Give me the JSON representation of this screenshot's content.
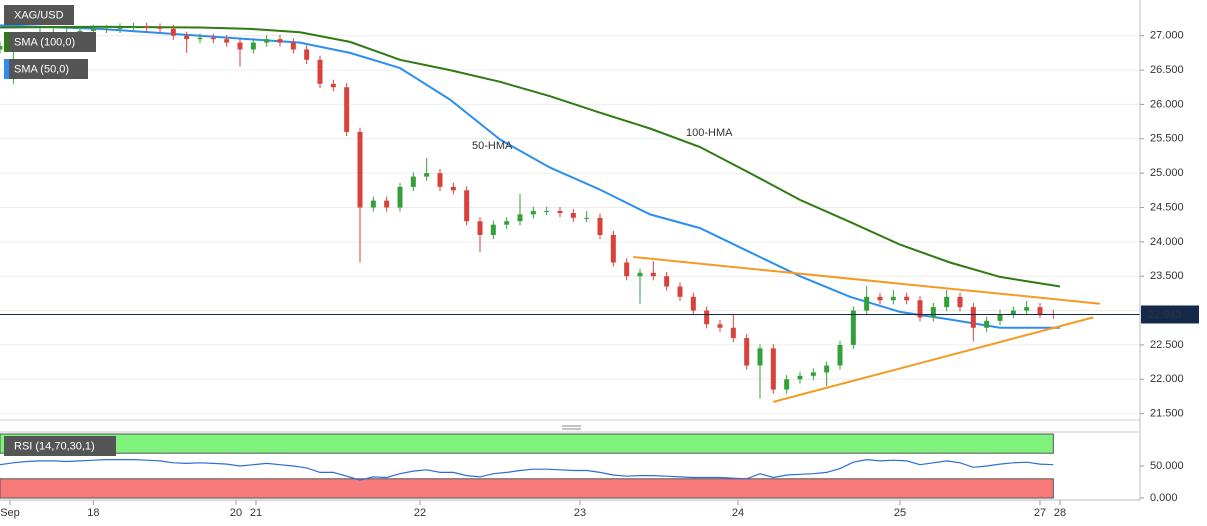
{
  "chart_data": [
    {
      "type": "candlestick",
      "title": "XAG/USD",
      "up_color": "#34a03a",
      "down_color": "#d9423b",
      "grid": true,
      "xlim": [
        0,
        171
      ],
      "ylim": [
        21.48,
        27.52
      ],
      "yticks": [
        {
          "value": 21.5,
          "label": "21.500"
        },
        {
          "value": 22,
          "label": "22.000"
        },
        {
          "value": 22.5,
          "label": "22.500"
        },
        {
          "value": 23,
          "label": "23.000"
        },
        {
          "value": 23.5,
          "label": "23.500"
        },
        {
          "value": 24,
          "label": "24.000"
        },
        {
          "value": 24.5,
          "label": "24.500"
        },
        {
          "value": 25,
          "label": "25.000"
        },
        {
          "value": 25.5,
          "label": "25.500"
        },
        {
          "value": 26,
          "label": "26.000"
        },
        {
          "value": 26.5,
          "label": "26.500"
        },
        {
          "value": 27,
          "label": "27.000"
        }
      ],
      "last_price": 22.943,
      "last_price_color": "#15294a",
      "x": [
        0,
        2,
        4,
        6,
        8,
        10,
        12,
        14,
        16,
        18,
        20,
        22,
        24,
        26,
        28,
        30,
        32,
        34,
        36,
        38,
        40,
        42,
        44,
        46,
        48,
        50,
        52,
        54,
        56,
        58,
        60,
        62,
        64,
        66,
        68,
        70,
        72,
        74,
        76,
        78,
        80,
        82,
        84,
        86,
        88,
        90,
        92,
        94,
        96,
        98,
        100,
        102,
        104,
        106,
        108,
        110,
        112,
        114,
        116,
        118,
        120,
        122,
        124,
        126,
        128,
        130,
        132,
        134,
        136,
        138,
        140,
        142,
        144,
        146,
        148,
        150,
        152,
        154,
        156,
        158
      ],
      "open": [
        26.8,
        26.85,
        26.95,
        27.0,
        27.05,
        27.05,
        27.05,
        27.07,
        27.1,
        27.1,
        27.12,
        27.13,
        27.12,
        27.1,
        27.0,
        26.95,
        26.97,
        26.95,
        26.9,
        26.8,
        26.9,
        26.95,
        26.9,
        26.8,
        26.65,
        26.3,
        26.25,
        25.6,
        24.5,
        24.6,
        24.5,
        24.8,
        24.95,
        25.0,
        24.8,
        24.75,
        24.3,
        24.1,
        24.25,
        24.3,
        24.4,
        24.45,
        24.45,
        24.42,
        24.35,
        24.35,
        24.1,
        23.7,
        23.5,
        23.55,
        23.5,
        23.35,
        23.2,
        23.0,
        22.8,
        22.75,
        22.6,
        22.2,
        22.45,
        21.85,
        22.0,
        22.05,
        22.1,
        22.2,
        22.5,
        23.0,
        23.2,
        23.15,
        23.2,
        23.15,
        22.9,
        23.05,
        23.2,
        23.05,
        22.75,
        22.85,
        22.95,
        23.0,
        23.05,
        22.95
      ],
      "high": [
        26.91,
        27.01,
        27.06,
        27.11,
        27.11,
        27.11,
        27.13,
        27.16,
        27.16,
        27.18,
        27.19,
        27.19,
        27.18,
        27.16,
        27.06,
        27.03,
        27.03,
        27.01,
        26.96,
        26.96,
        27.01,
        27.01,
        26.96,
        26.86,
        26.71,
        26.36,
        26.31,
        25.66,
        24.66,
        24.66,
        24.86,
        25.01,
        25.22,
        25.06,
        24.86,
        24.81,
        24.36,
        24.31,
        24.36,
        24.7,
        24.51,
        24.51,
        24.51,
        24.48,
        24.45,
        24.41,
        24.16,
        23.76,
        23.61,
        23.72,
        23.56,
        23.41,
        23.26,
        23.06,
        22.86,
        22.95,
        22.66,
        22.51,
        22.51,
        22.06,
        22.11,
        22.16,
        22.26,
        22.56,
        23.06,
        23.36,
        23.26,
        23.3,
        23.26,
        23.21,
        23.11,
        23.3,
        23.26,
        23.11,
        22.91,
        23.01,
        23.06,
        23.14,
        23.11,
        23.01
      ],
      "low": [
        26.74,
        26.3,
        26.89,
        26.94,
        26.99,
        26.99,
        26.99,
        27.01,
        27.04,
        27.04,
        27.06,
        27.06,
        27.04,
        26.94,
        26.75,
        26.89,
        26.89,
        26.84,
        26.55,
        26.74,
        26.84,
        26.84,
        26.74,
        26.59,
        26.24,
        26.19,
        25.54,
        23.7,
        24.44,
        24.44,
        24.44,
        24.74,
        24.89,
        24.74,
        24.69,
        24.24,
        23.85,
        24.04,
        24.19,
        24.24,
        24.34,
        24.39,
        24.36,
        24.29,
        24.29,
        24.04,
        23.64,
        23.44,
        23.1,
        23.44,
        23.29,
        23.14,
        22.94,
        22.74,
        22.69,
        22.54,
        22.14,
        21.72,
        21.79,
        21.79,
        21.94,
        21.99,
        21.9,
        22.14,
        22.44,
        22.94,
        23.09,
        23.09,
        23.09,
        22.84,
        22.84,
        22.99,
        22.99,
        22.55,
        22.69,
        22.79,
        22.89,
        22.94,
        22.89,
        22.88
      ],
      "close": [
        26.85,
        26.95,
        27.0,
        27.05,
        27.05,
        27.05,
        27.07,
        27.1,
        27.1,
        27.12,
        27.13,
        27.12,
        27.1,
        27.0,
        26.95,
        26.97,
        26.95,
        26.9,
        26.8,
        26.9,
        26.95,
        26.9,
        26.8,
        26.65,
        26.3,
        26.25,
        25.6,
        24.5,
        24.6,
        24.5,
        24.8,
        24.95,
        25.0,
        24.8,
        24.75,
        24.3,
        24.1,
        24.25,
        24.3,
        24.4,
        24.45,
        24.45,
        24.42,
        24.35,
        24.35,
        24.1,
        23.7,
        23.5,
        23.55,
        23.5,
        23.35,
        23.2,
        23.0,
        22.8,
        22.75,
        22.6,
        22.2,
        22.45,
        21.85,
        22.0,
        22.05,
        22.1,
        22.2,
        22.5,
        23.0,
        23.2,
        23.15,
        23.2,
        23.15,
        22.9,
        23.05,
        23.2,
        23.05,
        22.75,
        22.85,
        22.95,
        23.0,
        23.05,
        22.95,
        22.94
      ],
      "series": [
        {
          "name": "50-HMA",
          "legend": "SMA (50,0)",
          "color": "#2b8ef0",
          "x": [
            0,
            15,
            30,
            37.5,
            45,
            52.5,
            60,
            67.5,
            75,
            82.5,
            90,
            97.5,
            105,
            112.5,
            120,
            127.5,
            135,
            142.5,
            150,
            159
          ],
          "values": [
            27.15,
            27.1,
            27.0,
            26.95,
            26.9,
            26.75,
            26.53,
            26.07,
            25.49,
            25.08,
            24.76,
            24.4,
            24.2,
            23.85,
            23.5,
            23.2,
            22.98,
            22.87,
            22.75,
            22.75
          ]
        },
        {
          "name": "100-HMA",
          "legend": "SMA (100,0)",
          "color": "#2f7a12",
          "x": [
            0,
            15,
            30,
            37.5,
            45,
            52.5,
            60,
            67.5,
            75,
            82.5,
            90,
            97.5,
            105,
            112.5,
            120,
            127.5,
            135,
            142.5,
            150,
            159
          ],
          "values": [
            27.12,
            27.13,
            27.12,
            27.1,
            27.05,
            26.91,
            26.65,
            26.5,
            26.33,
            26.12,
            25.88,
            25.65,
            25.38,
            25.0,
            24.61,
            24.29,
            23.96,
            23.7,
            23.49,
            23.35
          ]
        }
      ],
      "trendlines": [
        {
          "color": "#f59a23",
          "x": [
            95,
            165
          ],
          "values": [
            23.78,
            23.1
          ]
        },
        {
          "color": "#f59a23",
          "x": [
            116,
            164
          ],
          "values": [
            21.67,
            22.9
          ]
        }
      ]
    },
    {
      "type": "line",
      "title": "RSI (14,70,30,1)",
      "color": "#2b6fd6",
      "xlim": [
        0,
        171
      ],
      "ylim": [
        0,
        100
      ],
      "yticks": [
        {
          "value": 0,
          "label": "0.000"
        },
        {
          "value": 50,
          "label": "50.000"
        }
      ],
      "bands": [
        {
          "range": [
            70,
            100
          ],
          "color": "#7ef27a"
        },
        {
          "range": [
            0,
            30
          ],
          "color": "#f97a7a"
        }
      ],
      "xticks": [
        {
          "value": 1.5,
          "label": "Sep"
        },
        {
          "value": 14,
          "label": "18"
        },
        {
          "value": 35.4,
          "label": "20"
        },
        {
          "value": 38.4,
          "label": "21"
        },
        {
          "value": 63,
          "label": "22"
        },
        {
          "value": 87,
          "label": "23"
        },
        {
          "value": 110.7,
          "label": "24"
        },
        {
          "value": 135,
          "label": "25"
        },
        {
          "value": 156,
          "label": "27"
        },
        {
          "value": 159,
          "label": "28"
        }
      ],
      "x": [
        0,
        2,
        4,
        6,
        8,
        10,
        12,
        14,
        16,
        18,
        20,
        22,
        24,
        26,
        28,
        30,
        32,
        34,
        36,
        38,
        40,
        42,
        44,
        46,
        48,
        50,
        52,
        54,
        56,
        58,
        60,
        62,
        64,
        66,
        68,
        70,
        72,
        74,
        76,
        78,
        80,
        82,
        84,
        86,
        88,
        90,
        92,
        94,
        96,
        98,
        100,
        102,
        104,
        106,
        108,
        110,
        112,
        114,
        116,
        118,
        120,
        122,
        124,
        126,
        128,
        130,
        132,
        134,
        136,
        138,
        140,
        142,
        144,
        146,
        148,
        150,
        152,
        154,
        156,
        158
      ],
      "values": [
        52,
        55,
        57,
        58,
        58,
        57,
        58,
        59,
        60,
        60,
        60,
        59,
        58,
        55,
        54,
        55,
        54,
        53,
        50,
        52,
        54,
        52,
        50,
        47,
        40,
        40,
        34,
        28,
        33,
        32,
        38,
        42,
        44,
        40,
        40,
        35,
        33,
        38,
        40,
        43,
        45,
        45,
        44,
        43,
        43,
        40,
        36,
        34,
        35,
        35,
        34,
        33,
        32,
        32,
        32,
        31,
        30,
        38,
        32,
        36,
        37,
        38,
        40,
        46,
        56,
        60,
        58,
        59,
        58,
        52,
        55,
        58,
        55,
        48,
        50,
        53,
        55,
        56,
        53,
        52
      ]
    }
  ]
}
